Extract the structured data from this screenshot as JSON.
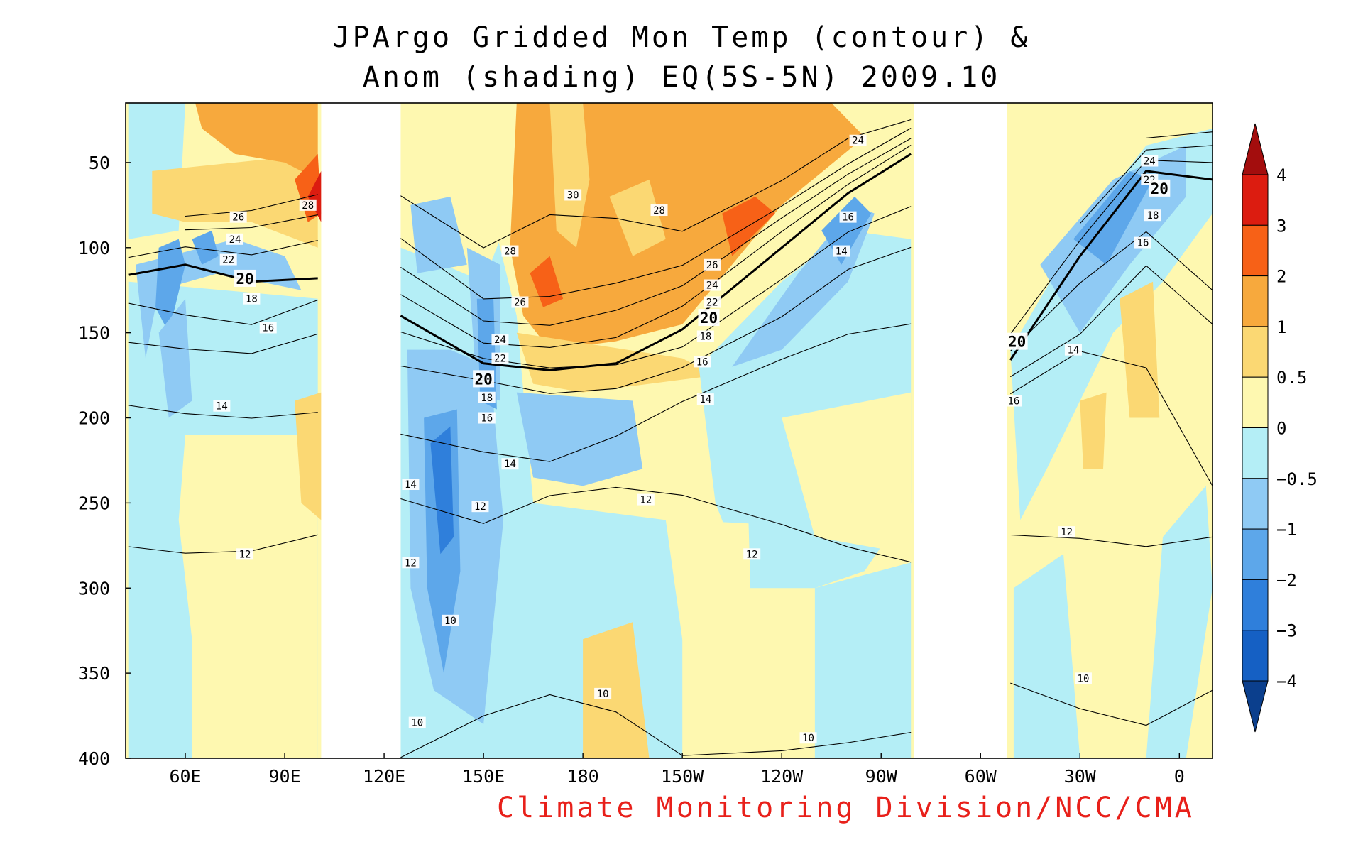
{
  "chart_data": {
    "type": "heatmap",
    "title_line1": "JPArgo Gridded Mon Temp (contour) &",
    "title_line2": "Anom (shading) EQ(5S-5N) 2009.10",
    "credit": "Climate Monitoring Division/NCC/CMA",
    "x_ticks": [
      {
        "lon": 60,
        "label": "60E"
      },
      {
        "lon": 90,
        "label": "90E"
      },
      {
        "lon": 120,
        "label": "120E"
      },
      {
        "lon": 150,
        "label": "150E"
      },
      {
        "lon": 180,
        "label": "180"
      },
      {
        "lon": 210,
        "label": "150W"
      },
      {
        "lon": 240,
        "label": "120W"
      },
      {
        "lon": 270,
        "label": "90W"
      },
      {
        "lon": 300,
        "label": "60W"
      },
      {
        "lon": 330,
        "label": "30W"
      },
      {
        "lon": 360,
        "label": "0"
      }
    ],
    "xlim": [
      42,
      370
    ],
    "y_ticks": [
      50,
      100,
      150,
      200,
      250,
      300,
      350,
      400
    ],
    "ylim": [
      15,
      400
    ],
    "y_reversed": true,
    "data_gaps_lon": [
      [
        101,
        125
      ],
      [
        280,
        308
      ]
    ],
    "colorbar": {
      "levels": [
        "4",
        "3",
        "2",
        "1",
        "0.5",
        "0",
        "−0.5",
        "−1",
        "−2",
        "−3",
        "−4"
      ],
      "colors": [
        "#a30d0d",
        "#dc1c10",
        "#f76117",
        "#f7a93d",
        "#fbd873",
        "#fef8b0",
        "#b4eef6",
        "#8fcaf4",
        "#5da7ea",
        "#2f7fdb",
        "#1560c4",
        "#0b3f8d"
      ]
    },
    "contour_labels_vertical_order": [
      "30",
      "28",
      "26",
      "24",
      "22",
      "20",
      "18",
      "16",
      "14",
      "12",
      "10"
    ],
    "isotherm_depths": {
      "lon": [
        43,
        60,
        80,
        100,
        125,
        150,
        170,
        190,
        210,
        240,
        260,
        279,
        309,
        330,
        350,
        370
      ],
      "T10": [
        null,
        null,
        null,
        null,
        400,
        375,
        362,
        372,
        398,
        395,
        390,
        385,
        355,
        370,
        380,
        360
      ],
      "T12": [
        275,
        280,
        278,
        268,
        248,
        262,
        245,
        240,
        245,
        262,
        275,
        285,
        268,
        270,
        275,
        270
      ],
      "T14": [
        192,
        198,
        200,
        196,
        210,
        220,
        225,
        210,
        190,
        165,
        150,
        145,
        185,
        160,
        170,
        240
      ],
      "T16": [
        155,
        160,
        162,
        150,
        170,
        178,
        185,
        182,
        170,
        140,
        112,
        100,
        175,
        150,
        110,
        145
      ],
      "T18": [
        132,
        140,
        145,
        130,
        150,
        165,
        170,
        168,
        158,
        118,
        90,
        76,
        160,
        120,
        90,
        125
      ],
      "T20": [
        116,
        110,
        120,
        118,
        140,
        168,
        172,
        168,
        148,
        100,
        68,
        45,
        166,
        105,
        55,
        60
      ],
      "T22": [
        105,
        100,
        104,
        95,
        128,
        156,
        158,
        152,
        134,
        90,
        62,
        40,
        150,
        95,
        48,
        50
      ],
      "T24": [
        null,
        90,
        88,
        80,
        112,
        143,
        145,
        136,
        122,
        82,
        56,
        36,
        null,
        85,
        42,
        40
      ],
      "T26": [
        null,
        82,
        78,
        68,
        95,
        130,
        128,
        120,
        110,
        75,
        50,
        30,
        null,
        null,
        35,
        32
      ],
      "T28": [
        null,
        null,
        null,
        50,
        70,
        100,
        80,
        82,
        90,
        60,
        35,
        25,
        null,
        null,
        null,
        null
      ]
    },
    "annotations": [
      {
        "lon": 78,
        "depth": 118,
        "label": "20"
      },
      {
        "lon": 80,
        "depth": 130,
        "label": "18"
      },
      {
        "lon": 85,
        "depth": 147,
        "label": "16"
      },
      {
        "lon": 71,
        "depth": 193,
        "label": "14"
      },
      {
        "lon": 78,
        "depth": 280,
        "label": "12"
      },
      {
        "lon": 76,
        "depth": 82,
        "label": "26"
      },
      {
        "lon": 75,
        "depth": 95,
        "label": "24"
      },
      {
        "lon": 73,
        "depth": 107,
        "label": "22"
      },
      {
        "lon": 97,
        "depth": 75,
        "label": "28"
      },
      {
        "lon": 177,
        "depth": 69,
        "label": "30"
      },
      {
        "lon": 203,
        "depth": 78,
        "label": "28"
      },
      {
        "lon": 158,
        "depth": 102,
        "label": "28"
      },
      {
        "lon": 161,
        "depth": 132,
        "label": "26"
      },
      {
        "lon": 155,
        "depth": 154,
        "label": "24"
      },
      {
        "lon": 155,
        "depth": 165,
        "label": "22"
      },
      {
        "lon": 150,
        "depth": 177,
        "label": "20"
      },
      {
        "lon": 151,
        "depth": 188,
        "label": "18"
      },
      {
        "lon": 151,
        "depth": 200,
        "label": "16"
      },
      {
        "lon": 158,
        "depth": 227,
        "label": "14"
      },
      {
        "lon": 149,
        "depth": 252,
        "label": "12"
      },
      {
        "lon": 128,
        "depth": 239,
        "label": "14"
      },
      {
        "lon": 128,
        "depth": 285,
        "label": "12"
      },
      {
        "lon": 140,
        "depth": 319,
        "label": "10"
      },
      {
        "lon": 130,
        "depth": 379,
        "label": "10"
      },
      {
        "lon": 186,
        "depth": 362,
        "label": "10"
      },
      {
        "lon": 219,
        "depth": 110,
        "label": "26"
      },
      {
        "lon": 219,
        "depth": 122,
        "label": "24"
      },
      {
        "lon": 219,
        "depth": 132,
        "label": "22"
      },
      {
        "lon": 218,
        "depth": 141,
        "label": "20"
      },
      {
        "lon": 217,
        "depth": 152,
        "label": "18"
      },
      {
        "lon": 216,
        "depth": 167,
        "label": "16"
      },
      {
        "lon": 217,
        "depth": 189,
        "label": "14"
      },
      {
        "lon": 199,
        "depth": 248,
        "label": "12"
      },
      {
        "lon": 231,
        "depth": 280,
        "label": "12"
      },
      {
        "lon": 248,
        "depth": 388,
        "label": "10"
      },
      {
        "lon": 263,
        "depth": 37,
        "label": "24"
      },
      {
        "lon": 260,
        "depth": 82,
        "label": "16"
      },
      {
        "lon": 258,
        "depth": 102,
        "label": "14"
      },
      {
        "lon": 351,
        "depth": 49,
        "label": "24"
      },
      {
        "lon": 351,
        "depth": 60,
        "label": "22"
      },
      {
        "lon": 354,
        "depth": 65,
        "label": "20"
      },
      {
        "lon": 352,
        "depth": 81,
        "label": "18"
      },
      {
        "lon": 349,
        "depth": 97,
        "label": "16"
      },
      {
        "lon": 311,
        "depth": 155,
        "label": "20"
      },
      {
        "lon": 310,
        "depth": 190,
        "label": "16"
      },
      {
        "lon": 328,
        "depth": 160,
        "label": "14"
      },
      {
        "lon": 326,
        "depth": 267,
        "label": "12"
      },
      {
        "lon": 331,
        "depth": 353,
        "label": "10"
      }
    ]
  }
}
